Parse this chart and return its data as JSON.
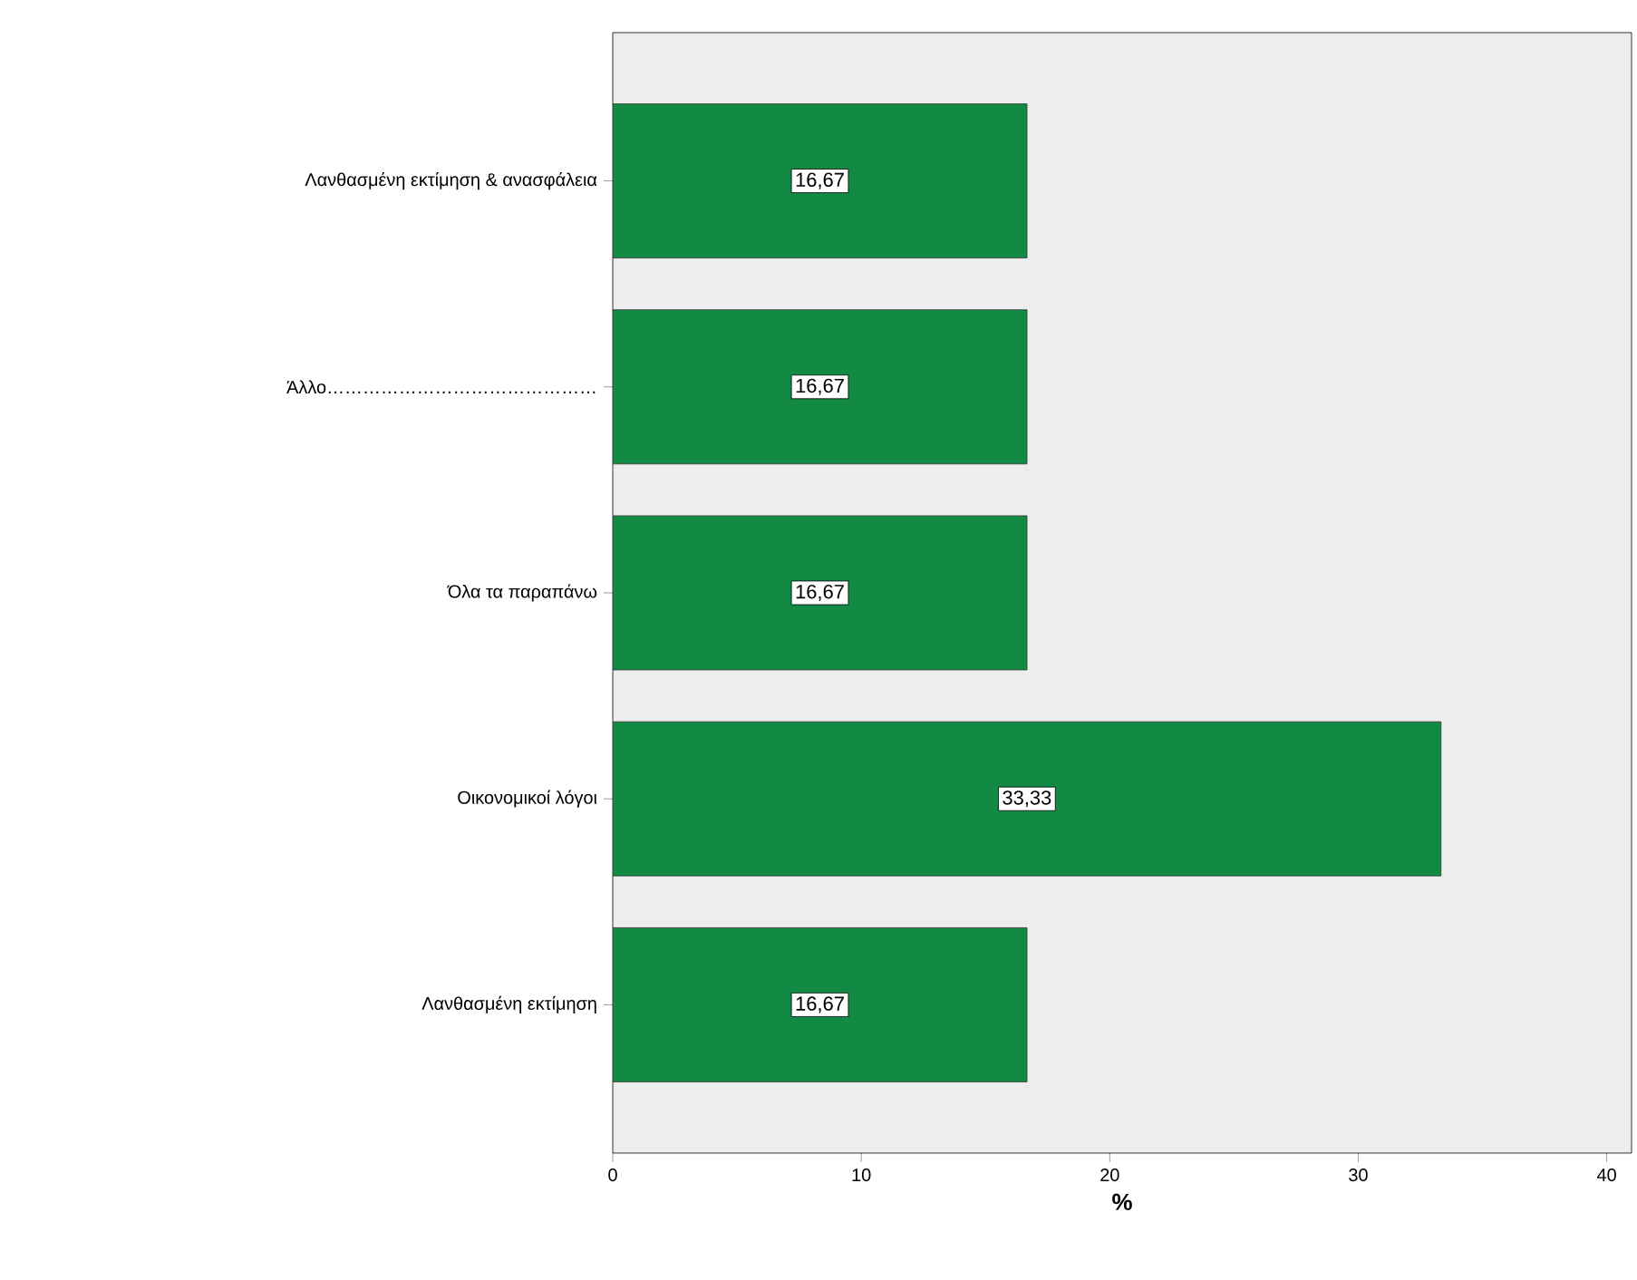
{
  "chart_data": {
    "type": "bar",
    "orientation": "horizontal",
    "xlabel": "%",
    "categories": [
      "Λανθασμένη εκτίμηση & ανασφάλεια",
      "Άλλο………………………………………",
      "Όλα τα παραπάνω",
      "Οικονομικοί λόγοι",
      "Λανθασμένη εκτίμηση"
    ],
    "values": [
      16.67,
      16.67,
      16.67,
      33.33,
      16.67
    ],
    "value_labels": [
      "16,67",
      "16,67",
      "16,67",
      "33,33",
      "16,67"
    ],
    "color": "#138a43",
    "xlim": [
      0,
      41
    ],
    "xticks": [
      0,
      10,
      20,
      30,
      40
    ],
    "grid": false
  }
}
